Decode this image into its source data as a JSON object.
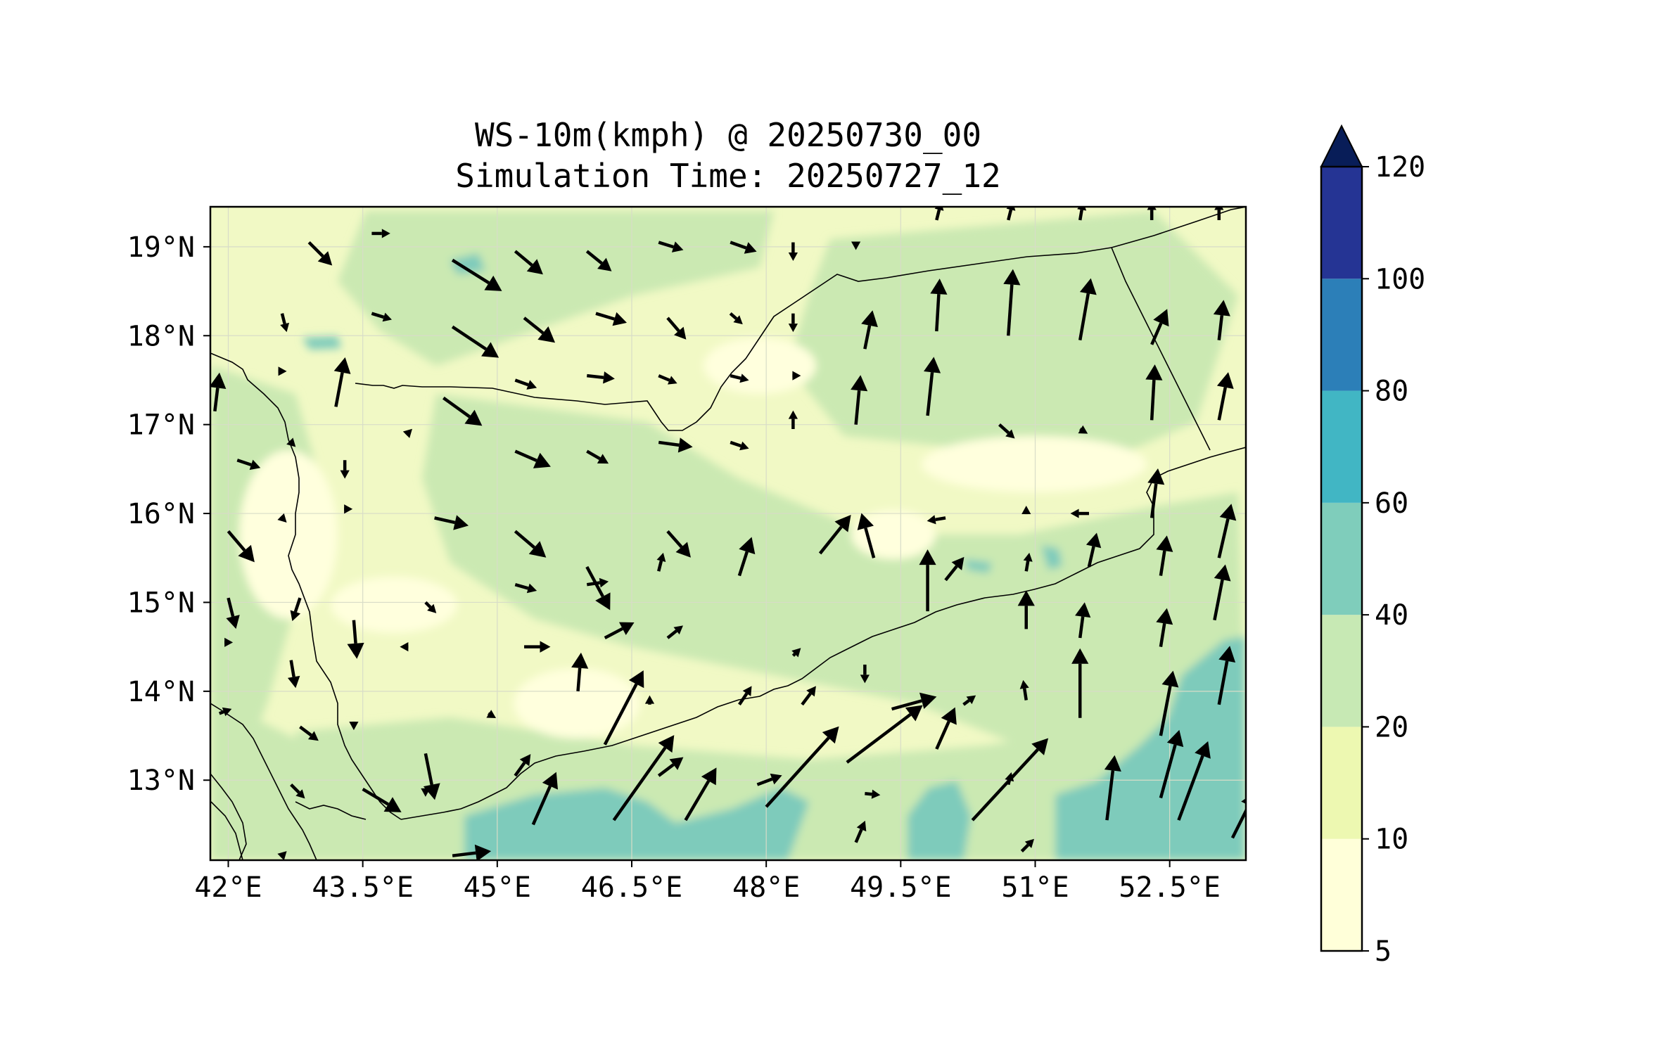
{
  "title": {
    "line1": "WS-10m(kmph) @ 20250730_00",
    "line2": "Simulation Time: 20250727_12"
  },
  "map": {
    "lon_range": [
      41.8,
      53.35
    ],
    "lat_range": [
      12.1,
      19.45
    ],
    "x_ticks": [
      {
        "value": 42.0,
        "label": "42°E"
      },
      {
        "value": 43.5,
        "label": "43.5°E"
      },
      {
        "value": 45.0,
        "label": "45°E"
      },
      {
        "value": 46.5,
        "label": "46.5°E"
      },
      {
        "value": 48.0,
        "label": "48°E"
      },
      {
        "value": 49.5,
        "label": "49.5°E"
      },
      {
        "value": 51.0,
        "label": "51°E"
      },
      {
        "value": 52.5,
        "label": "52.5°E"
      }
    ],
    "y_ticks": [
      {
        "value": 19,
        "label": "19°N"
      },
      {
        "value": 18,
        "label": "18°N"
      },
      {
        "value": 17,
        "label": "17°N"
      },
      {
        "value": 16,
        "label": "16°N"
      },
      {
        "value": 15,
        "label": "15°N"
      },
      {
        "value": 14,
        "label": "14°N"
      },
      {
        "value": 13,
        "label": "13°N"
      }
    ],
    "background_color": "#f1f9c5",
    "grid": true
  },
  "colorbar": {
    "levels": [
      5,
      10,
      20,
      40,
      60,
      80,
      100,
      120
    ],
    "labels": [
      "5",
      "10",
      "20",
      "40",
      "60",
      "80",
      "100",
      "120"
    ],
    "colors": [
      "#ffffd9",
      "#edf8b1",
      "#c7e9b4",
      "#7fcdbb",
      "#41b6c4",
      "#2c7fb8",
      "#253494"
    ],
    "extend_color": "#081d58",
    "extend": "max"
  },
  "wind_vectors": [
    {
      "lon": 42.9,
      "lat": 19.05,
      "u": 1.5,
      "v": -1.5
    },
    {
      "lon": 43.6,
      "lat": 19.15,
      "u": 1.2,
      "v": 0.0
    },
    {
      "lon": 44.5,
      "lat": 18.85,
      "u": 3.2,
      "v": -2.0
    },
    {
      "lon": 45.2,
      "lat": 18.95,
      "u": 1.8,
      "v": -1.5
    },
    {
      "lon": 46.0,
      "lat": 18.95,
      "u": 1.6,
      "v": -1.3
    },
    {
      "lon": 46.8,
      "lat": 19.05,
      "u": 1.6,
      "v": -0.5
    },
    {
      "lon": 47.6,
      "lat": 19.05,
      "u": 1.7,
      "v": -0.6
    },
    {
      "lon": 48.3,
      "lat": 19.05,
      "u": 0.0,
      "v": -1.2
    },
    {
      "lon": 49.0,
      "lat": 19.05,
      "u": 0.0,
      "v": -0.5
    },
    {
      "lon": 49.9,
      "lat": 19.3,
      "u": 0.3,
      "v": 1.2
    },
    {
      "lon": 50.7,
      "lat": 19.3,
      "u": 0.3,
      "v": 1.2
    },
    {
      "lon": 51.5,
      "lat": 19.3,
      "u": 0.2,
      "v": 1.2
    },
    {
      "lon": 52.3,
      "lat": 19.3,
      "u": 0.0,
      "v": 1.2
    },
    {
      "lon": 53.05,
      "lat": 19.3,
      "u": 0.0,
      "v": 1.2
    },
    {
      "lon": 42.6,
      "lat": 18.25,
      "u": 0.3,
      "v": -1.2
    },
    {
      "lon": 43.6,
      "lat": 18.25,
      "u": 1.3,
      "v": -0.4
    },
    {
      "lon": 44.5,
      "lat": 18.1,
      "u": 3.0,
      "v": -2.0
    },
    {
      "lon": 45.3,
      "lat": 18.2,
      "u": 2.0,
      "v": -1.6
    },
    {
      "lon": 46.1,
      "lat": 18.25,
      "u": 2.0,
      "v": -0.6
    },
    {
      "lon": 46.9,
      "lat": 18.2,
      "u": 1.2,
      "v": -1.4
    },
    {
      "lon": 47.6,
      "lat": 18.25,
      "u": 0.8,
      "v": -0.7
    },
    {
      "lon": 48.3,
      "lat": 18.25,
      "u": 0.0,
      "v": -1.2
    },
    {
      "lon": 49.1,
      "lat": 17.85,
      "u": 0.5,
      "v": 2.5
    },
    {
      "lon": 49.9,
      "lat": 18.05,
      "u": 0.2,
      "v": 3.4
    },
    {
      "lon": 50.7,
      "lat": 18.0,
      "u": 0.3,
      "v": 4.3
    },
    {
      "lon": 51.5,
      "lat": 17.95,
      "u": 0.7,
      "v": 4.0
    },
    {
      "lon": 52.3,
      "lat": 17.9,
      "u": 1.0,
      "v": 2.3
    },
    {
      "lon": 53.05,
      "lat": 17.95,
      "u": 0.3,
      "v": 2.6
    },
    {
      "lon": 42.6,
      "lat": 17.6,
      "u": 0.3,
      "v": 0.0
    },
    {
      "lon": 43.2,
      "lat": 17.2,
      "u": 0.6,
      "v": 3.2
    },
    {
      "lon": 44.4,
      "lat": 17.3,
      "u": 2.5,
      "v": -1.8
    },
    {
      "lon": 45.2,
      "lat": 17.5,
      "u": 1.4,
      "v": -0.5
    },
    {
      "lon": 46.0,
      "lat": 17.55,
      "u": 1.8,
      "v": -0.2
    },
    {
      "lon": 46.8,
      "lat": 17.55,
      "u": 1.2,
      "v": -0.5
    },
    {
      "lon": 47.6,
      "lat": 17.55,
      "u": 1.2,
      "v": -0.3
    },
    {
      "lon": 48.3,
      "lat": 17.55,
      "u": 0.5,
      "v": 0.0
    },
    {
      "lon": 49.0,
      "lat": 17.0,
      "u": 0.3,
      "v": 3.2
    },
    {
      "lon": 49.8,
      "lat": 17.1,
      "u": 0.4,
      "v": 3.8
    },
    {
      "lon": 50.6,
      "lat": 17.0,
      "u": 1.0,
      "v": -0.9
    },
    {
      "lon": 51.5,
      "lat": 16.95,
      "u": 0.5,
      "v": -0.3
    },
    {
      "lon": 52.3,
      "lat": 17.05,
      "u": 0.2,
      "v": 3.6
    },
    {
      "lon": 53.05,
      "lat": 17.05,
      "u": 0.6,
      "v": 3.1
    },
    {
      "lon": 41.85,
      "lat": 17.15,
      "u": 0.3,
      "v": 2.5
    },
    {
      "lon": 42.1,
      "lat": 16.6,
      "u": 1.5,
      "v": -0.5
    },
    {
      "lon": 42.7,
      "lat": 16.8,
      "u": 0.3,
      "v": -0.3
    },
    {
      "lon": 43.3,
      "lat": 16.6,
      "u": 0.0,
      "v": -1.2
    },
    {
      "lon": 44.0,
      "lat": 16.9,
      "u": 0.3,
      "v": 0.3
    },
    {
      "lon": 45.2,
      "lat": 16.7,
      "u": 2.3,
      "v": -1.0
    },
    {
      "lon": 46.0,
      "lat": 16.7,
      "u": 1.4,
      "v": -0.8
    },
    {
      "lon": 46.8,
      "lat": 16.8,
      "u": 2.2,
      "v": -0.3
    },
    {
      "lon": 47.6,
      "lat": 16.8,
      "u": 1.2,
      "v": -0.4
    },
    {
      "lon": 48.3,
      "lat": 16.95,
      "u": 0.0,
      "v": 1.2
    },
    {
      "lon": 52.3,
      "lat": 15.95,
      "u": 0.4,
      "v": 3.2
    },
    {
      "lon": 42.0,
      "lat": 15.8,
      "u": 1.7,
      "v": -2.0
    },
    {
      "lon": 42.6,
      "lat": 15.95,
      "u": 0.3,
      "v": -0.3
    },
    {
      "lon": 43.3,
      "lat": 16.05,
      "u": 0.5,
      "v": 0.0
    },
    {
      "lon": 44.3,
      "lat": 15.95,
      "u": 2.2,
      "v": -0.5
    },
    {
      "lon": 45.2,
      "lat": 15.8,
      "u": 2.0,
      "v": -1.7
    },
    {
      "lon": 46.0,
      "lat": 15.4,
      "u": 1.5,
      "v": -2.8
    },
    {
      "lon": 46.9,
      "lat": 15.8,
      "u": 1.5,
      "v": -1.7
    },
    {
      "lon": 47.7,
      "lat": 15.3,
      "u": 0.8,
      "v": 2.5
    },
    {
      "lon": 48.6,
      "lat": 15.55,
      "u": 2.0,
      "v": 2.5
    },
    {
      "lon": 49.2,
      "lat": 15.5,
      "u": -0.8,
      "v": 2.9
    },
    {
      "lon": 50.0,
      "lat": 15.95,
      "u": -1.2,
      "v": -0.2
    },
    {
      "lon": 50.9,
      "lat": 16.0,
      "u": 0.0,
      "v": 0.5
    },
    {
      "lon": 51.6,
      "lat": 16.0,
      "u": -1.2,
      "v": 0.0
    },
    {
      "lon": 51.6,
      "lat": 15.4,
      "u": 0.5,
      "v": 2.2
    },
    {
      "lon": 52.4,
      "lat": 15.3,
      "u": 0.4,
      "v": 2.6
    },
    {
      "lon": 53.05,
      "lat": 15.5,
      "u": 0.8,
      "v": 3.5
    },
    {
      "lon": 42.0,
      "lat": 15.05,
      "u": 0.5,
      "v": -2.0
    },
    {
      "lon": 42.8,
      "lat": 15.05,
      "u": -0.5,
      "v": -1.5
    },
    {
      "lon": 43.4,
      "lat": 14.8,
      "u": 0.2,
      "v": -2.5
    },
    {
      "lon": 44.2,
      "lat": 15.0,
      "u": 0.7,
      "v": -0.7
    },
    {
      "lon": 45.2,
      "lat": 15.2,
      "u": 1.4,
      "v": -0.4
    },
    {
      "lon": 46.0,
      "lat": 15.2,
      "u": 1.4,
      "v": 0.2
    },
    {
      "lon": 46.8,
      "lat": 15.35,
      "u": 0.3,
      "v": 1.2
    },
    {
      "lon": 49.8,
      "lat": 14.9,
      "u": 0.0,
      "v": 4.0
    },
    {
      "lon": 50.0,
      "lat": 15.25,
      "u": 1.2,
      "v": 1.5
    },
    {
      "lon": 50.9,
      "lat": 15.35,
      "u": 0.2,
      "v": 1.2
    },
    {
      "lon": 50.9,
      "lat": 14.7,
      "u": 0.0,
      "v": 2.5
    },
    {
      "lon": 51.5,
      "lat": 14.6,
      "u": 0.3,
      "v": 2.3
    },
    {
      "lon": 52.4,
      "lat": 14.5,
      "u": 0.4,
      "v": 2.5
    },
    {
      "lon": 53.0,
      "lat": 14.8,
      "u": 0.7,
      "v": 3.6
    },
    {
      "lon": 42.0,
      "lat": 14.55,
      "u": 0.3,
      "v": 0.0
    },
    {
      "lon": 42.7,
      "lat": 14.35,
      "u": 0.3,
      "v": -1.8
    },
    {
      "lon": 43.4,
      "lat": 14.45,
      "u": 0.0,
      "v": -0.2
    },
    {
      "lon": 44.0,
      "lat": 14.5,
      "u": -0.5,
      "v": 0.0
    },
    {
      "lon": 45.3,
      "lat": 14.5,
      "u": 1.7,
      "v": 0.0
    },
    {
      "lon": 46.2,
      "lat": 14.6,
      "u": 1.9,
      "v": 1.0
    },
    {
      "lon": 46.9,
      "lat": 14.6,
      "u": 1.0,
      "v": 0.8
    },
    {
      "lon": 48.3,
      "lat": 14.4,
      "u": 0.5,
      "v": 0.5
    },
    {
      "lon": 49.1,
      "lat": 14.3,
      "u": 0.0,
      "v": -1.2
    },
    {
      "lon": 50.9,
      "lat": 13.9,
      "u": -0.2,
      "v": 1.3
    },
    {
      "lon": 51.5,
      "lat": 13.7,
      "u": 0.0,
      "v": 4.5
    },
    {
      "lon": 52.4,
      "lat": 13.5,
      "u": 0.8,
      "v": 4.2
    },
    {
      "lon": 53.05,
      "lat": 13.85,
      "u": 0.7,
      "v": 3.8
    },
    {
      "lon": 41.9,
      "lat": 13.75,
      "u": 0.8,
      "v": 0.3
    },
    {
      "lon": 42.8,
      "lat": 13.6,
      "u": 1.2,
      "v": -0.9
    },
    {
      "lon": 43.4,
      "lat": 13.65,
      "u": 0.0,
      "v": -0.5
    },
    {
      "lon": 44.2,
      "lat": 13.3,
      "u": 0.6,
      "v": -3.0
    },
    {
      "lon": 44.9,
      "lat": 13.75,
      "u": 0.5,
      "v": -0.3
    },
    {
      "lon": 45.9,
      "lat": 14.0,
      "u": 0.2,
      "v": 2.5
    },
    {
      "lon": 46.2,
      "lat": 13.4,
      "u": 2.5,
      "v": 4.8
    },
    {
      "lon": 46.7,
      "lat": 13.85,
      "u": 0.0,
      "v": 0.6
    },
    {
      "lon": 47.7,
      "lat": 13.85,
      "u": 0.8,
      "v": 1.2
    },
    {
      "lon": 48.4,
      "lat": 13.85,
      "u": 0.9,
      "v": 1.2
    },
    {
      "lon": 49.4,
      "lat": 13.8,
      "u": 2.9,
      "v": 0.8
    },
    {
      "lon": 50.2,
      "lat": 13.85,
      "u": 0.8,
      "v": 0.6
    },
    {
      "lon": 52.4,
      "lat": 12.8,
      "u": 1.2,
      "v": 4.4
    },
    {
      "lon": 42.7,
      "lat": 12.95,
      "u": 0.9,
      "v": -0.9
    },
    {
      "lon": 43.5,
      "lat": 12.9,
      "u": 2.5,
      "v": -1.5
    },
    {
      "lon": 44.2,
      "lat": 12.9,
      "u": 0.0,
      "v": -0.5
    },
    {
      "lon": 45.2,
      "lat": 13.05,
      "u": 1.0,
      "v": 1.4
    },
    {
      "lon": 46.8,
      "lat": 13.05,
      "u": 1.6,
      "v": 1.2
    },
    {
      "lon": 47.9,
      "lat": 12.95,
      "u": 1.6,
      "v": 0.6
    },
    {
      "lon": 49.1,
      "lat": 12.85,
      "u": 1.0,
      "v": -0.1
    },
    {
      "lon": 49.9,
      "lat": 13.35,
      "u": 1.2,
      "v": 2.7
    },
    {
      "lon": 50.7,
      "lat": 12.95,
      "u": 0.2,
      "v": 0.8
    },
    {
      "lon": 45.4,
      "lat": 12.5,
      "u": 1.5,
      "v": 3.4
    },
    {
      "lon": 46.3,
      "lat": 12.55,
      "u": 3.9,
      "v": 5.5
    },
    {
      "lon": 47.1,
      "lat": 12.55,
      "u": 2.0,
      "v": 3.4
    },
    {
      "lon": 48.0,
      "lat": 12.7,
      "u": 4.7,
      "v": 5.2
    },
    {
      "lon": 48.9,
      "lat": 13.2,
      "u": 4.9,
      "v": 3.7
    },
    {
      "lon": 49.0,
      "lat": 12.3,
      "u": 0.6,
      "v": 1.4
    },
    {
      "lon": 50.3,
      "lat": 12.55,
      "u": 4.9,
      "v": 5.3
    },
    {
      "lon": 50.85,
      "lat": 12.2,
      "u": 0.8,
      "v": 0.8
    },
    {
      "lon": 51.8,
      "lat": 12.55,
      "u": 0.5,
      "v": 4.2
    },
    {
      "lon": 52.6,
      "lat": 12.55,
      "u": 1.9,
      "v": 5.1
    },
    {
      "lon": 53.2,
      "lat": 12.35,
      "u": 1.5,
      "v": 3.0
    },
    {
      "lon": 44.5,
      "lat": 12.15,
      "u": 2.5,
      "v": 0.3
    },
    {
      "lon": 42.6,
      "lat": 12.15,
      "u": 0.3,
      "v": 0.3
    }
  ]
}
